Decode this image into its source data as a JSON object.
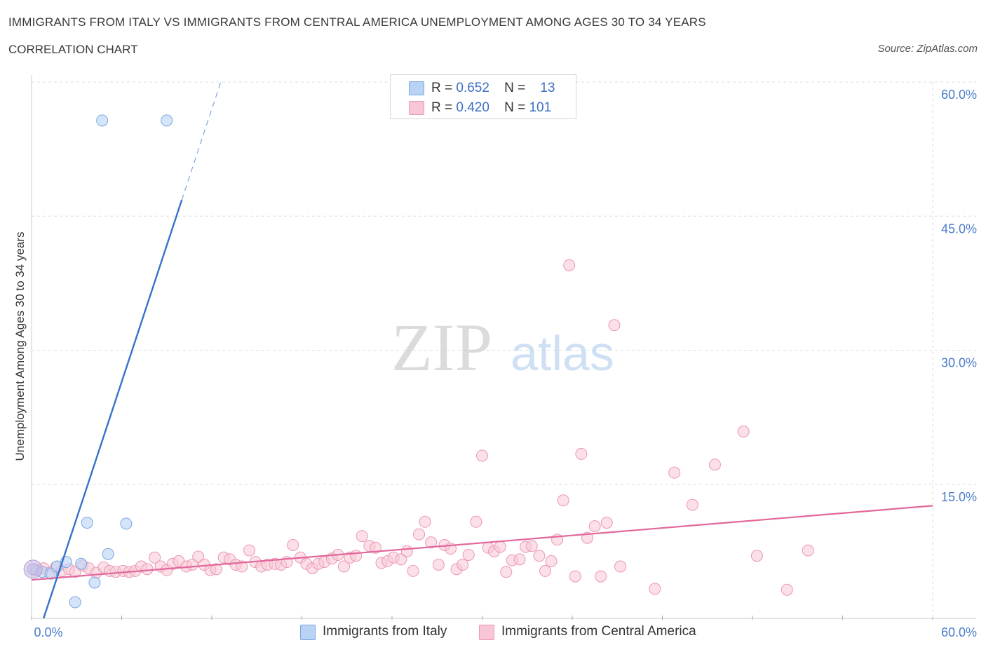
{
  "title": "IMMIGRANTS FROM ITALY VS IMMIGRANTS FROM CENTRAL AMERICA UNEMPLOYMENT AMONG AGES 30 TO 34 YEARS",
  "subtitle": "CORRELATION CHART",
  "source": "Source: ZipAtlas.com",
  "watermark": {
    "zip": "ZIP",
    "atlas": "atlas"
  },
  "legend": {
    "italy": {
      "r_label": "R =",
      "r_value": "0.652",
      "n_label": "N =",
      "n_value": "13"
    },
    "central": {
      "r_label": "R =",
      "r_value": "0.420",
      "n_label": "N =",
      "n_value": "101"
    }
  },
  "bottom_legend": {
    "italy": "Immigrants from Italy",
    "central": "Immigrants from Central America"
  },
  "colors": {
    "italy_fill": "#b9d3f5",
    "italy_stroke": "#7aa6e0",
    "italy_line": "#3672c9",
    "central_fill": "#f8c6d6",
    "central_stroke": "#ec97b3",
    "central_line": "#e2679a",
    "grid": "#dcdcdc",
    "axis_text": "#4a7cc9"
  },
  "chart_data": {
    "type": "scatter",
    "title": "IMMIGRANTS FROM ITALY VS IMMIGRANTS FROM CENTRAL AMERICA UNEMPLOYMENT AMONG AGES 30 TO 34 YEARS",
    "xlabel": "",
    "ylabel": "Unemployment Among Ages 30 to 34 years",
    "xlim": [
      0,
      60
    ],
    "ylim": [
      0,
      60
    ],
    "x_tick_labels": [
      "0.0%",
      "60.0%"
    ],
    "y_ticks": [
      15,
      30,
      45,
      60
    ],
    "y_tick_labels": [
      "15.0%",
      "30.0%",
      "45.0%",
      "60.0%"
    ],
    "grid": true,
    "legend_position": "top-center",
    "series": [
      {
        "name": "Immigrants from Italy",
        "r": 0.652,
        "n": 13,
        "points": [
          [
            0.1,
            5.5
          ],
          [
            0.7,
            5.2
          ],
          [
            1.3,
            5.0
          ],
          [
            1.7,
            5.8
          ],
          [
            2.3,
            6.3
          ],
          [
            3.3,
            6.1
          ],
          [
            2.9,
            1.8
          ],
          [
            4.2,
            4.0
          ],
          [
            3.7,
            10.7
          ],
          [
            5.1,
            7.2
          ],
          [
            6.3,
            10.6
          ],
          [
            4.7,
            55.7
          ],
          [
            9.0,
            55.7
          ]
        ],
        "trend": {
          "x0": 0.8,
          "y0": 0.0,
          "x1": 10.0,
          "y1": 46.8,
          "dash_to_x": 12.6,
          "dash_to_y": 60.0
        }
      },
      {
        "name": "Immigrants from Central America",
        "r": 0.42,
        "n": 101,
        "points": [
          [
            0.3,
            5.4
          ],
          [
            0.8,
            5.6
          ],
          [
            1.2,
            5.1
          ],
          [
            1.6,
            5.7
          ],
          [
            2.0,
            5.3
          ],
          [
            2.5,
            5.5
          ],
          [
            2.9,
            5.2
          ],
          [
            3.4,
            5.9
          ],
          [
            3.8,
            5.6
          ],
          [
            4.3,
            5.1
          ],
          [
            4.8,
            5.7
          ],
          [
            5.2,
            5.3
          ],
          [
            5.6,
            5.2
          ],
          [
            6.1,
            5.3
          ],
          [
            6.5,
            5.2
          ],
          [
            6.9,
            5.3
          ],
          [
            7.3,
            5.8
          ],
          [
            7.7,
            5.5
          ],
          [
            8.2,
            6.8
          ],
          [
            8.6,
            5.8
          ],
          [
            9.0,
            5.4
          ],
          [
            9.4,
            6.1
          ],
          [
            9.8,
            6.4
          ],
          [
            10.3,
            5.8
          ],
          [
            10.7,
            6.0
          ],
          [
            11.1,
            6.9
          ],
          [
            11.5,
            6.0
          ],
          [
            11.9,
            5.4
          ],
          [
            12.3,
            5.5
          ],
          [
            12.8,
            6.8
          ],
          [
            13.2,
            6.6
          ],
          [
            13.6,
            6.0
          ],
          [
            14.0,
            5.8
          ],
          [
            14.5,
            7.6
          ],
          [
            14.9,
            6.3
          ],
          [
            15.3,
            5.8
          ],
          [
            15.7,
            6.0
          ],
          [
            16.2,
            6.1
          ],
          [
            16.6,
            6.0
          ],
          [
            17.0,
            6.3
          ],
          [
            17.4,
            8.2
          ],
          [
            17.9,
            6.8
          ],
          [
            18.3,
            6.1
          ],
          [
            18.7,
            5.6
          ],
          [
            19.1,
            6.1
          ],
          [
            19.5,
            6.3
          ],
          [
            20.0,
            6.7
          ],
          [
            20.4,
            7.1
          ],
          [
            20.8,
            5.8
          ],
          [
            21.2,
            6.8
          ],
          [
            21.6,
            7.0
          ],
          [
            22.0,
            9.2
          ],
          [
            22.5,
            8.1
          ],
          [
            22.9,
            7.9
          ],
          [
            23.3,
            6.2
          ],
          [
            23.7,
            6.4
          ],
          [
            24.1,
            6.8
          ],
          [
            24.6,
            6.6
          ],
          [
            25.0,
            7.5
          ],
          [
            25.4,
            5.3
          ],
          [
            25.8,
            9.4
          ],
          [
            26.2,
            10.8
          ],
          [
            26.6,
            8.5
          ],
          [
            27.1,
            6.0
          ],
          [
            27.5,
            8.2
          ],
          [
            27.9,
            7.8
          ],
          [
            28.3,
            5.5
          ],
          [
            28.7,
            6.0
          ],
          [
            29.1,
            7.1
          ],
          [
            29.6,
            10.8
          ],
          [
            30.0,
            18.2
          ],
          [
            30.4,
            7.9
          ],
          [
            30.8,
            7.5
          ],
          [
            31.2,
            8.0
          ],
          [
            31.6,
            5.2
          ],
          [
            32.0,
            6.5
          ],
          [
            32.5,
            6.6
          ],
          [
            32.9,
            8.0
          ],
          [
            33.3,
            8.1
          ],
          [
            33.8,
            7.0
          ],
          [
            34.2,
            5.3
          ],
          [
            34.6,
            6.4
          ],
          [
            35.0,
            8.8
          ],
          [
            35.4,
            13.2
          ],
          [
            35.8,
            39.5
          ],
          [
            36.2,
            4.7
          ],
          [
            36.6,
            18.4
          ],
          [
            37.0,
            9.0
          ],
          [
            37.5,
            10.3
          ],
          [
            37.9,
            4.7
          ],
          [
            38.3,
            10.7
          ],
          [
            38.8,
            32.8
          ],
          [
            39.2,
            5.8
          ],
          [
            41.5,
            3.3
          ],
          [
            42.8,
            16.3
          ],
          [
            44.0,
            12.7
          ],
          [
            45.5,
            17.2
          ],
          [
            47.4,
            20.9
          ],
          [
            48.3,
            7.0
          ],
          [
            50.3,
            3.2
          ],
          [
            51.7,
            7.6
          ]
        ],
        "trend": {
          "x0": 0.0,
          "y0": 4.3,
          "x1": 60.0,
          "y1": 12.6
        }
      }
    ]
  }
}
